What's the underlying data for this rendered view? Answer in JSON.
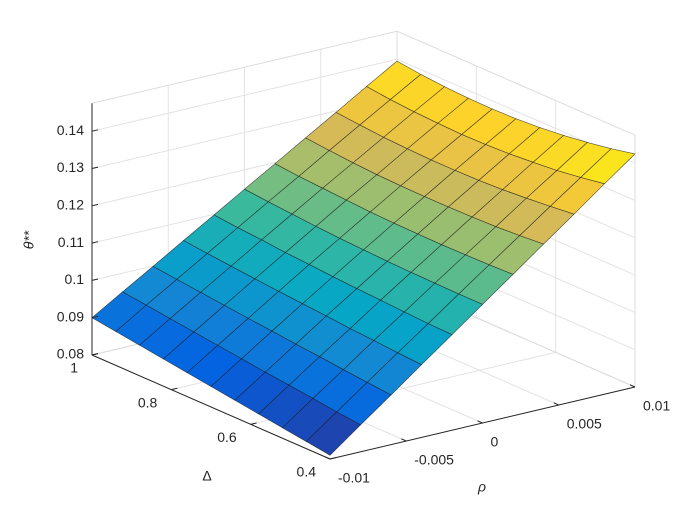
{
  "chart_data": {
    "type": "surface",
    "xlabel": "ρ",
    "ylabel": "Δ",
    "zlabel": "θ**",
    "x": [
      -0.01,
      -0.008,
      -0.006,
      -0.004,
      -0.002,
      0,
      0.002,
      0.004,
      0.006,
      0.008,
      0.01
    ],
    "y": [
      0.4,
      0.46,
      0.52,
      0.58,
      0.64,
      0.7,
      0.76,
      0.82,
      0.88,
      0.94,
      1
    ],
    "z": [
      [
        0.081,
        0.0872,
        0.0933,
        0.0995,
        0.1056,
        0.1118,
        0.1179,
        0.1241,
        0.1302,
        0.1364,
        0.1425
      ],
      [
        0.0819,
        0.0879,
        0.0939,
        0.0999,
        0.1058,
        0.1118,
        0.1177,
        0.1236,
        0.1295,
        0.1353,
        0.1411
      ],
      [
        0.0828,
        0.0887,
        0.0945,
        0.1004,
        0.1061,
        0.1119,
        0.1176,
        0.1232,
        0.1289,
        0.1344,
        0.14
      ],
      [
        0.0837,
        0.0895,
        0.0952,
        0.1008,
        0.1065,
        0.112,
        0.1175,
        0.123,
        0.1284,
        0.1338,
        0.1391
      ],
      [
        0.0846,
        0.0902,
        0.0958,
        0.1014,
        0.1068,
        0.1122,
        0.1176,
        0.1229,
        0.1281,
        0.1333,
        0.1384
      ],
      [
        0.0855,
        0.091,
        0.0965,
        0.1019,
        0.1072,
        0.1125,
        0.1177,
        0.1229,
        0.128,
        0.133,
        0.138
      ],
      [
        0.0864,
        0.0918,
        0.0971,
        0.1024,
        0.1077,
        0.1128,
        0.1179,
        0.123,
        0.128,
        0.1329,
        0.1378
      ],
      [
        0.0873,
        0.0926,
        0.0978,
        0.103,
        0.1081,
        0.1132,
        0.1183,
        0.1232,
        0.1282,
        0.1331,
        0.1379
      ],
      [
        0.0882,
        0.0934,
        0.0985,
        0.1036,
        0.1087,
        0.1137,
        0.1187,
        0.1236,
        0.1285,
        0.1334,
        0.1382
      ],
      [
        0.0891,
        0.0942,
        0.0992,
        0.1042,
        0.1092,
        0.1142,
        0.1191,
        0.1241,
        0.129,
        0.1339,
        0.1387
      ],
      [
        0.09,
        0.095,
        0.0999,
        0.1049,
        0.1098,
        0.1148,
        0.1197,
        0.1247,
        0.1296,
        0.1346,
        0.1395
      ]
    ],
    "xlim": [
      -0.01,
      0.01
    ],
    "xticks": [
      -0.01,
      -0.005,
      0,
      0.005,
      0.01
    ],
    "ylim": [
      0.4,
      1
    ],
    "yticks": [
      0.4,
      0.6,
      0.8,
      1
    ],
    "zlim": [
      0.08,
      0.1475
    ],
    "zticks": [
      0.08,
      0.09,
      0.1,
      0.11,
      0.12,
      0.13,
      0.14
    ],
    "grid": true,
    "colormap": "parula"
  }
}
